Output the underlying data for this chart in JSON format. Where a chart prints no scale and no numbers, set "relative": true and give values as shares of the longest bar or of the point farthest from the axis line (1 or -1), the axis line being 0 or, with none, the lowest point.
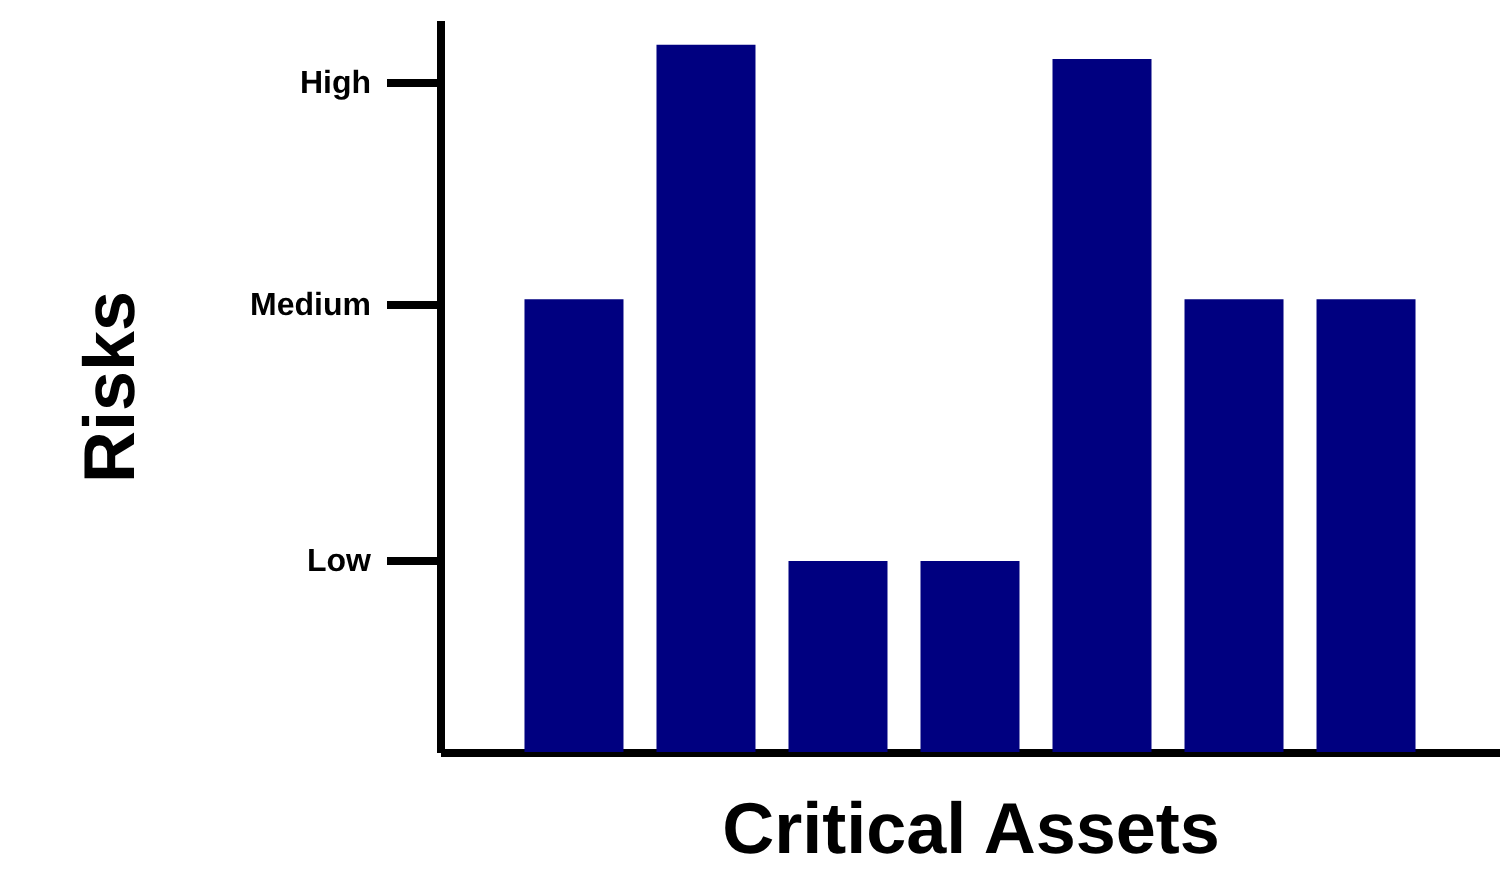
{
  "chart_data": {
    "type": "bar",
    "xlabel": "Critical Assets",
    "ylabel": "Risks",
    "categories": [
      null,
      null,
      null,
      null,
      null,
      null,
      null
    ],
    "values": [
      0.64,
      1,
      0.27,
      0.27,
      0.98,
      0.64,
      0.64
    ],
    "color": "#000080",
    "relative": true,
    "annotations": [
      "Low",
      "Medium",
      "High"
    ],
    "grid": false
  }
}
